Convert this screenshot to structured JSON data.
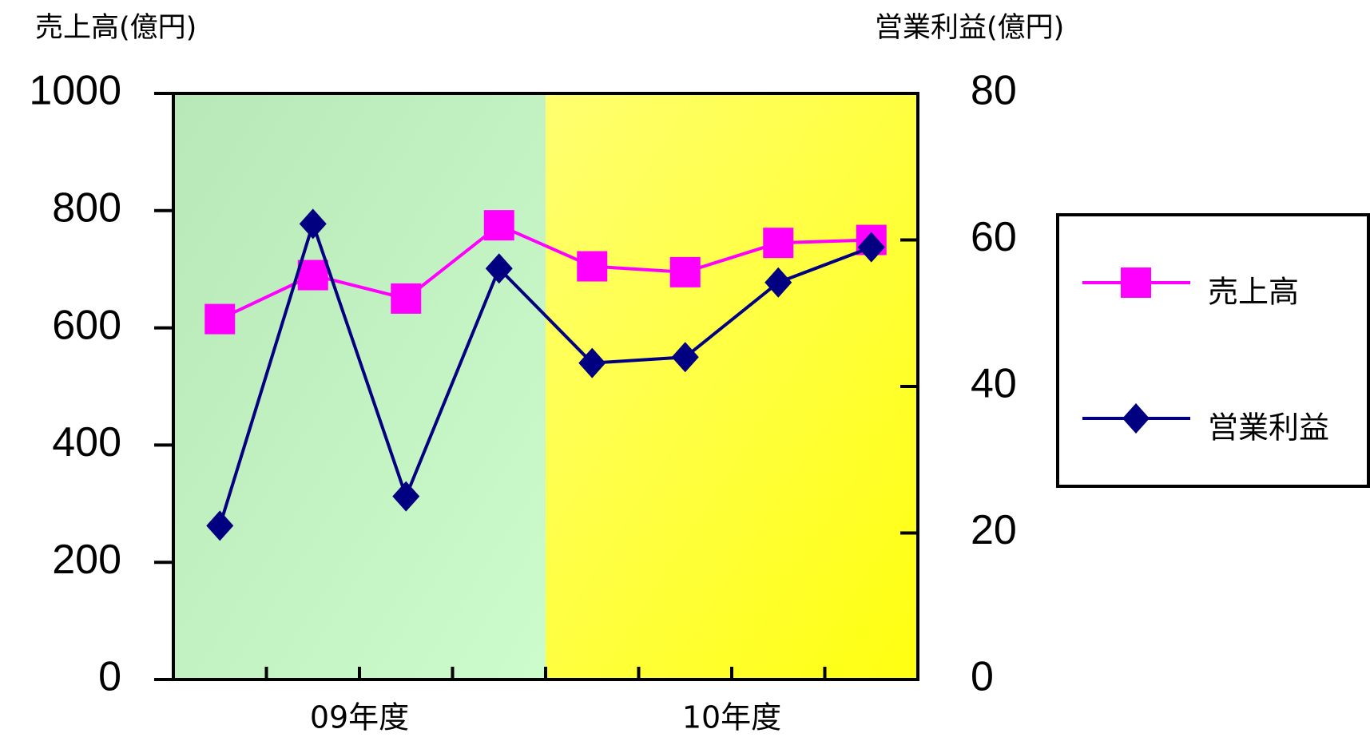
{
  "chart_data": {
    "type": "line",
    "y_label": "売上高(億円)",
    "y2_label": "営業利益(億円)",
    "categories": [
      null,
      null,
      null,
      null,
      null,
      null,
      null,
      null
    ],
    "category_groups": [
      "09年度",
      "10年度"
    ],
    "series": [
      {
        "name": "売上高",
        "color": "#ff00ff",
        "marker": "square",
        "values": [
          615,
          690,
          650,
          775,
          705,
          695,
          745,
          750
        ]
      },
      {
        "name": "営業利益",
        "color": "#000080",
        "marker": "diamond",
        "axis": "y2",
        "values": [
          21,
          62.2,
          25,
          56.1,
          43.2,
          44,
          54.2,
          59
        ]
      }
    ],
    "ylim": [
      0,
      1000
    ],
    "yticks": [
      0,
      200,
      400,
      600,
      800,
      1000
    ],
    "y2lim": [
      0,
      80
    ],
    "y2ticks": [
      0,
      20,
      40,
      60,
      80
    ],
    "grid": false
  }
}
